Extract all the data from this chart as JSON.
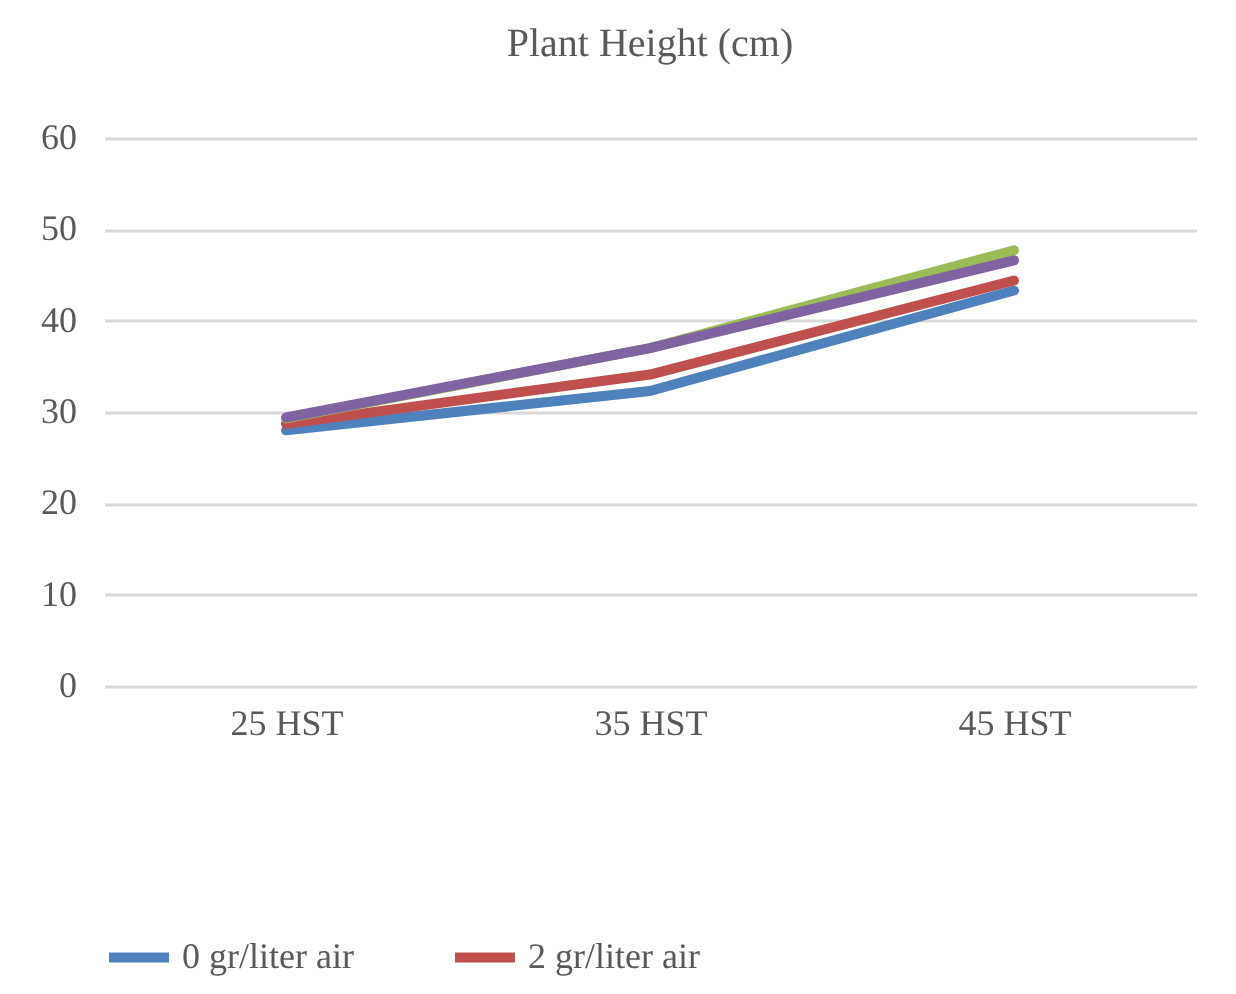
{
  "chart_data": {
    "type": "line",
    "title": "Plant Height (cm)",
    "categories": [
      "25 HST",
      "35 HST",
      "45 HST"
    ],
    "series": [
      {
        "name": "0 gr/liter air",
        "color": "#4f81bd",
        "values": [
          28,
          32.3,
          43.3
        ]
      },
      {
        "name": "2 gr/liter air",
        "color": "#c0504d",
        "values": [
          28.7,
          34.1,
          44.4
        ]
      },
      {
        "color": "#9bbb59",
        "values": [
          29.3,
          37,
          47.7
        ]
      },
      {
        "color": "#8064a2",
        "values": [
          29.4,
          37,
          46.6
        ]
      }
    ],
    "ylim": [
      0,
      60
    ],
    "yticks": [
      0,
      10,
      20,
      30,
      40,
      50,
      60
    ],
    "grid": "y",
    "legend": "bottom",
    "marker": "none",
    "line_style": "solid"
  }
}
